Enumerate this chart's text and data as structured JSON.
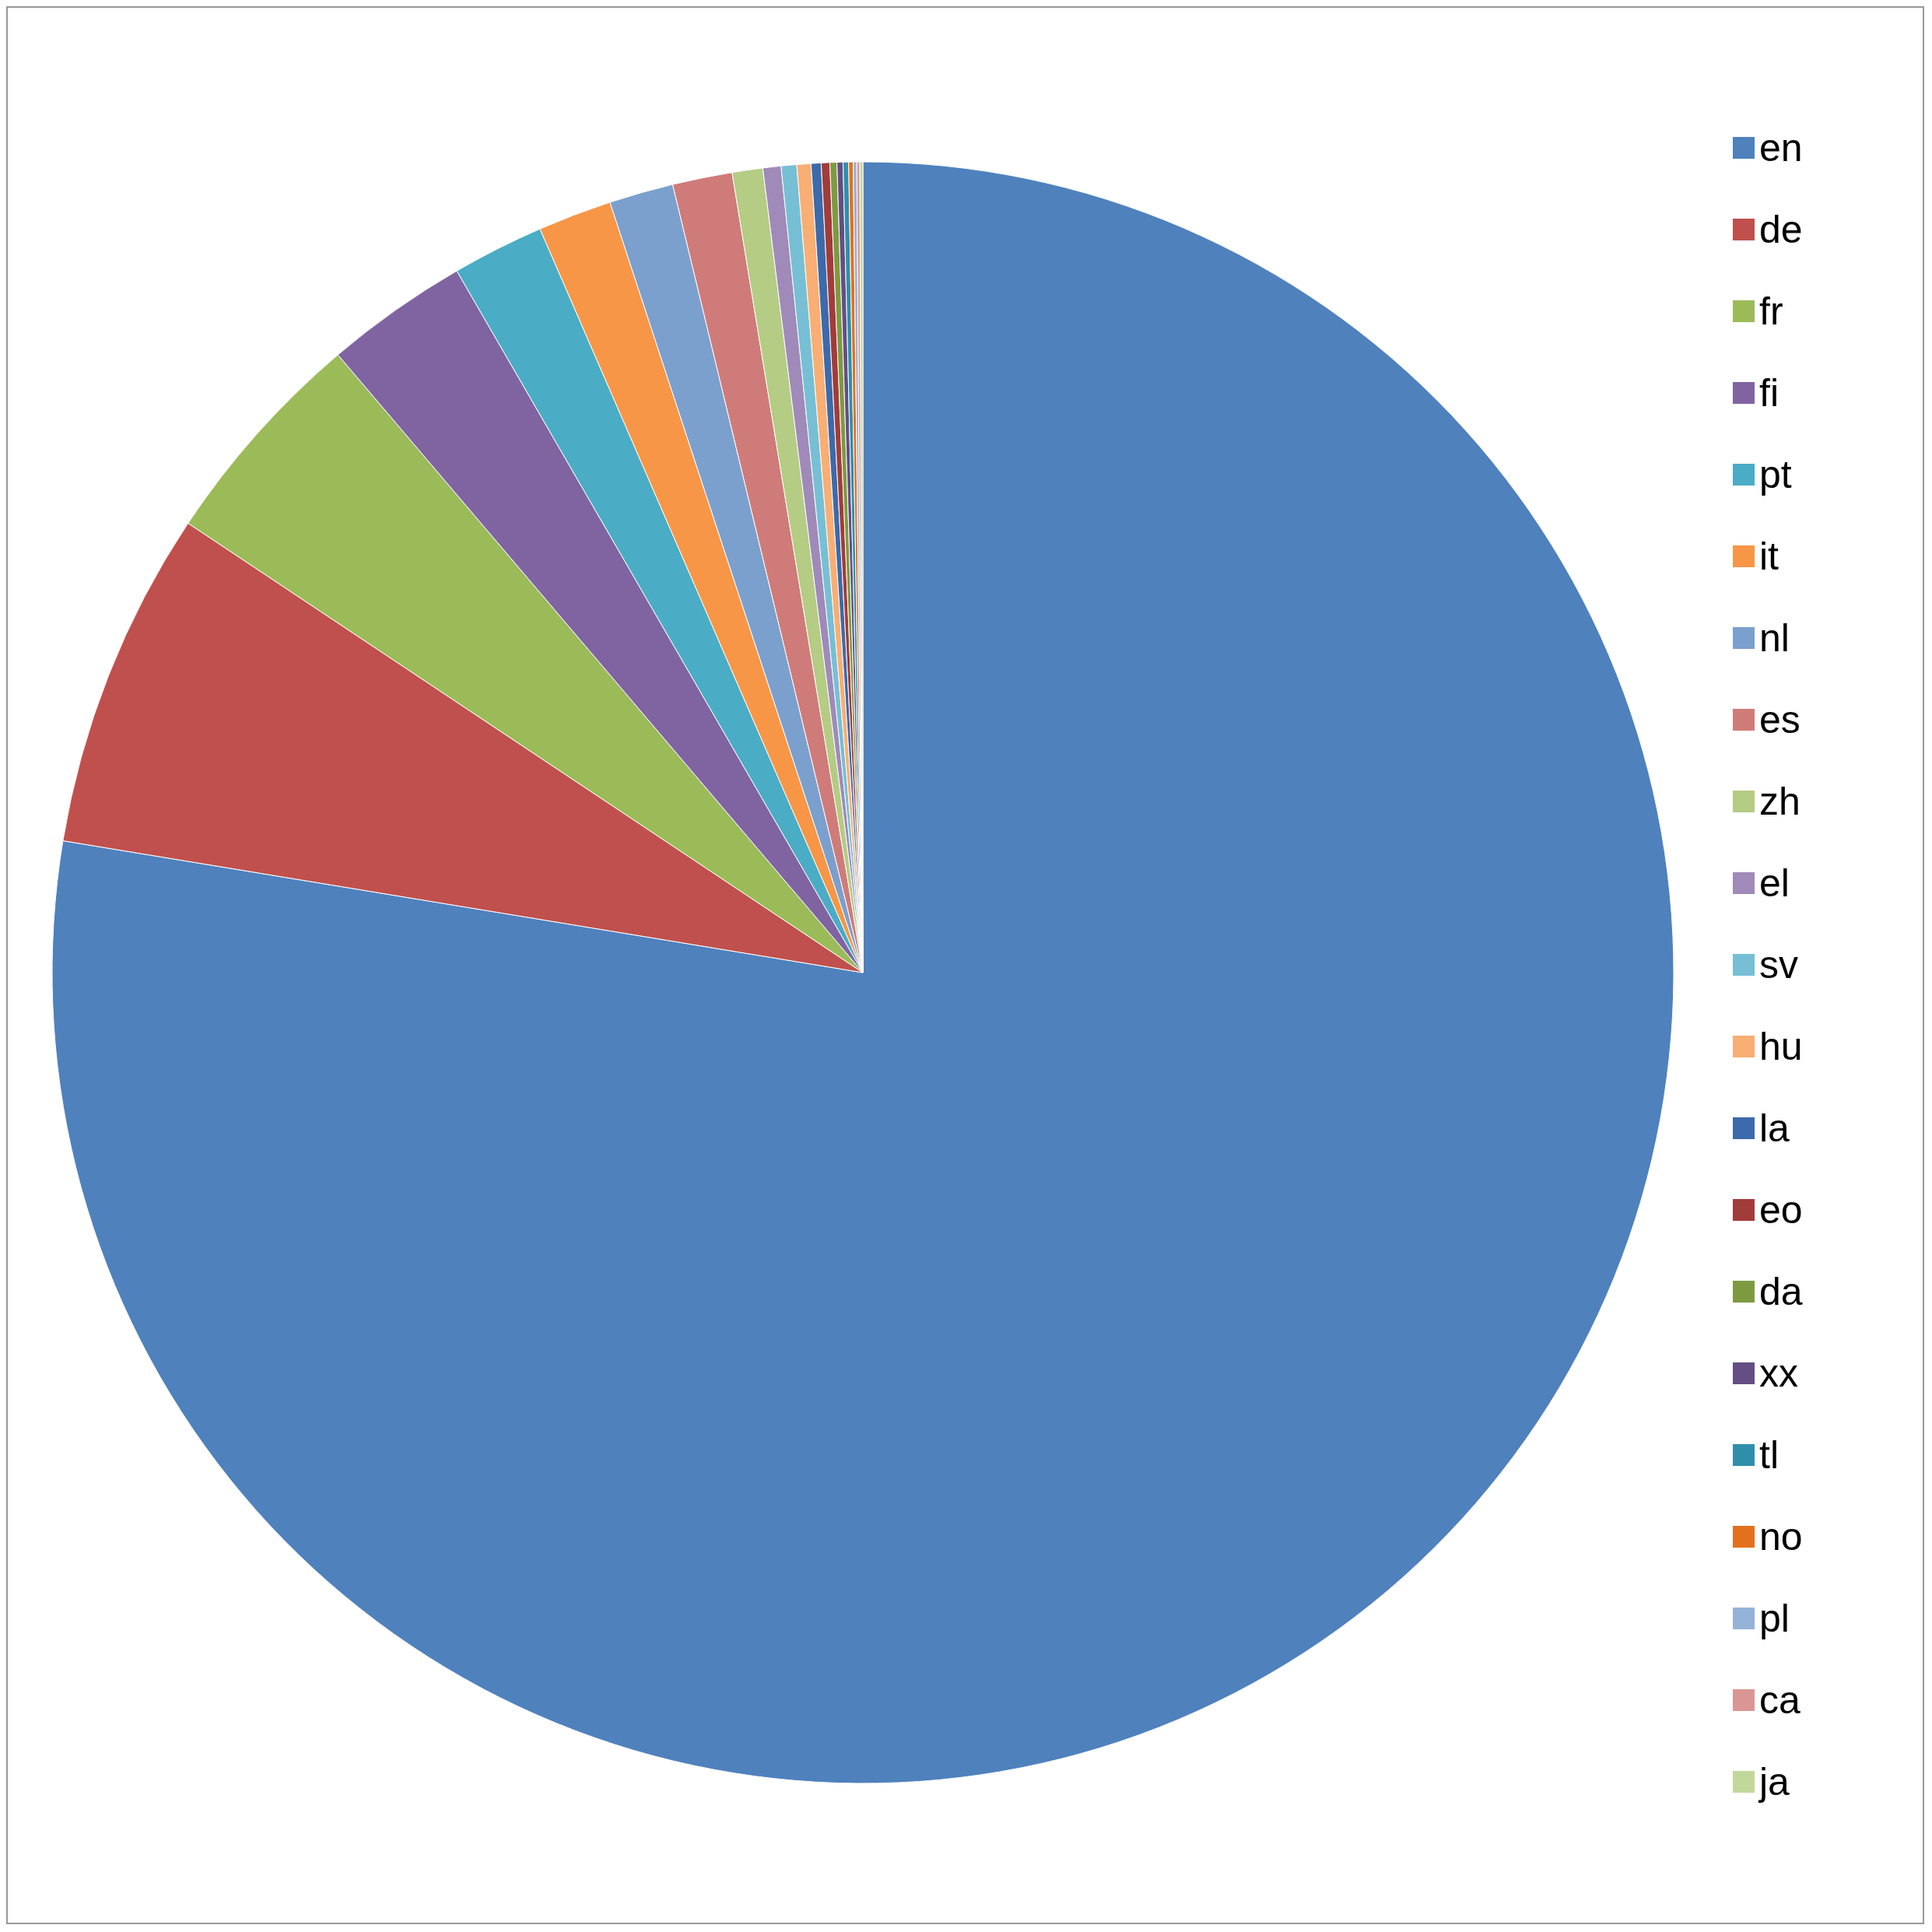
{
  "chart_data": {
    "type": "pie",
    "categories": [
      "en",
      "de",
      "fr",
      "fi",
      "pt",
      "it",
      "nl",
      "es",
      "zh",
      "el",
      "sv",
      "hu",
      "la",
      "eo",
      "da",
      "xx",
      "tl",
      "no",
      "pl",
      "ca",
      "ja"
    ],
    "values": [
      77.6,
      6.75,
      4.44,
      2.86,
      1.83,
      1.47,
      1.28,
      1.19,
      0.61,
      0.36,
      0.31,
      0.28,
      0.2,
      0.17,
      0.14,
      0.12,
      0.11,
      0.09,
      0.07,
      0.06,
      0.06
    ],
    "colors": [
      "#4f81bd",
      "#c0504d",
      "#9bbb59",
      "#8064a2",
      "#4bacc6",
      "#f79646",
      "#7ba0cd",
      "#cf7b79",
      "#b4cc83",
      "#9f8ab9",
      "#77bfd4",
      "#f9ae73",
      "#3c6aaa",
      "#a23c3a",
      "#7e9a41",
      "#644e83",
      "#2f8fab",
      "#e3711c",
      "#95b3d7",
      "#da9694",
      "#c4d79b"
    ],
    "legend": "right"
  }
}
